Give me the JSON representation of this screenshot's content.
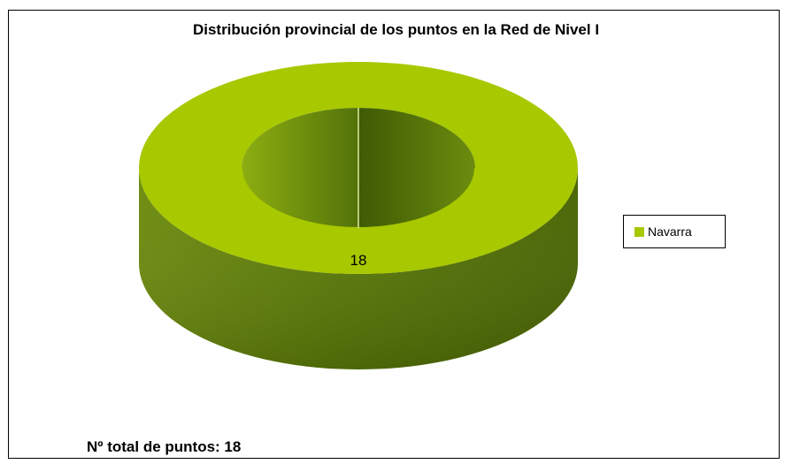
{
  "chart_data": {
    "type": "pie",
    "title": "Distribución provincial de los puntos en la Red de Nivel I",
    "categories": [
      "Navarra"
    ],
    "values": [
      18
    ],
    "data_labels": [
      "18"
    ],
    "legend": {
      "entries": [
        "Navarra"
      ],
      "placement": "right"
    },
    "colors": {
      "Navarra": "#a8c800"
    },
    "style": "3d-doughnut"
  },
  "footer": {
    "total_text": "Nº total de puntos: 18"
  }
}
